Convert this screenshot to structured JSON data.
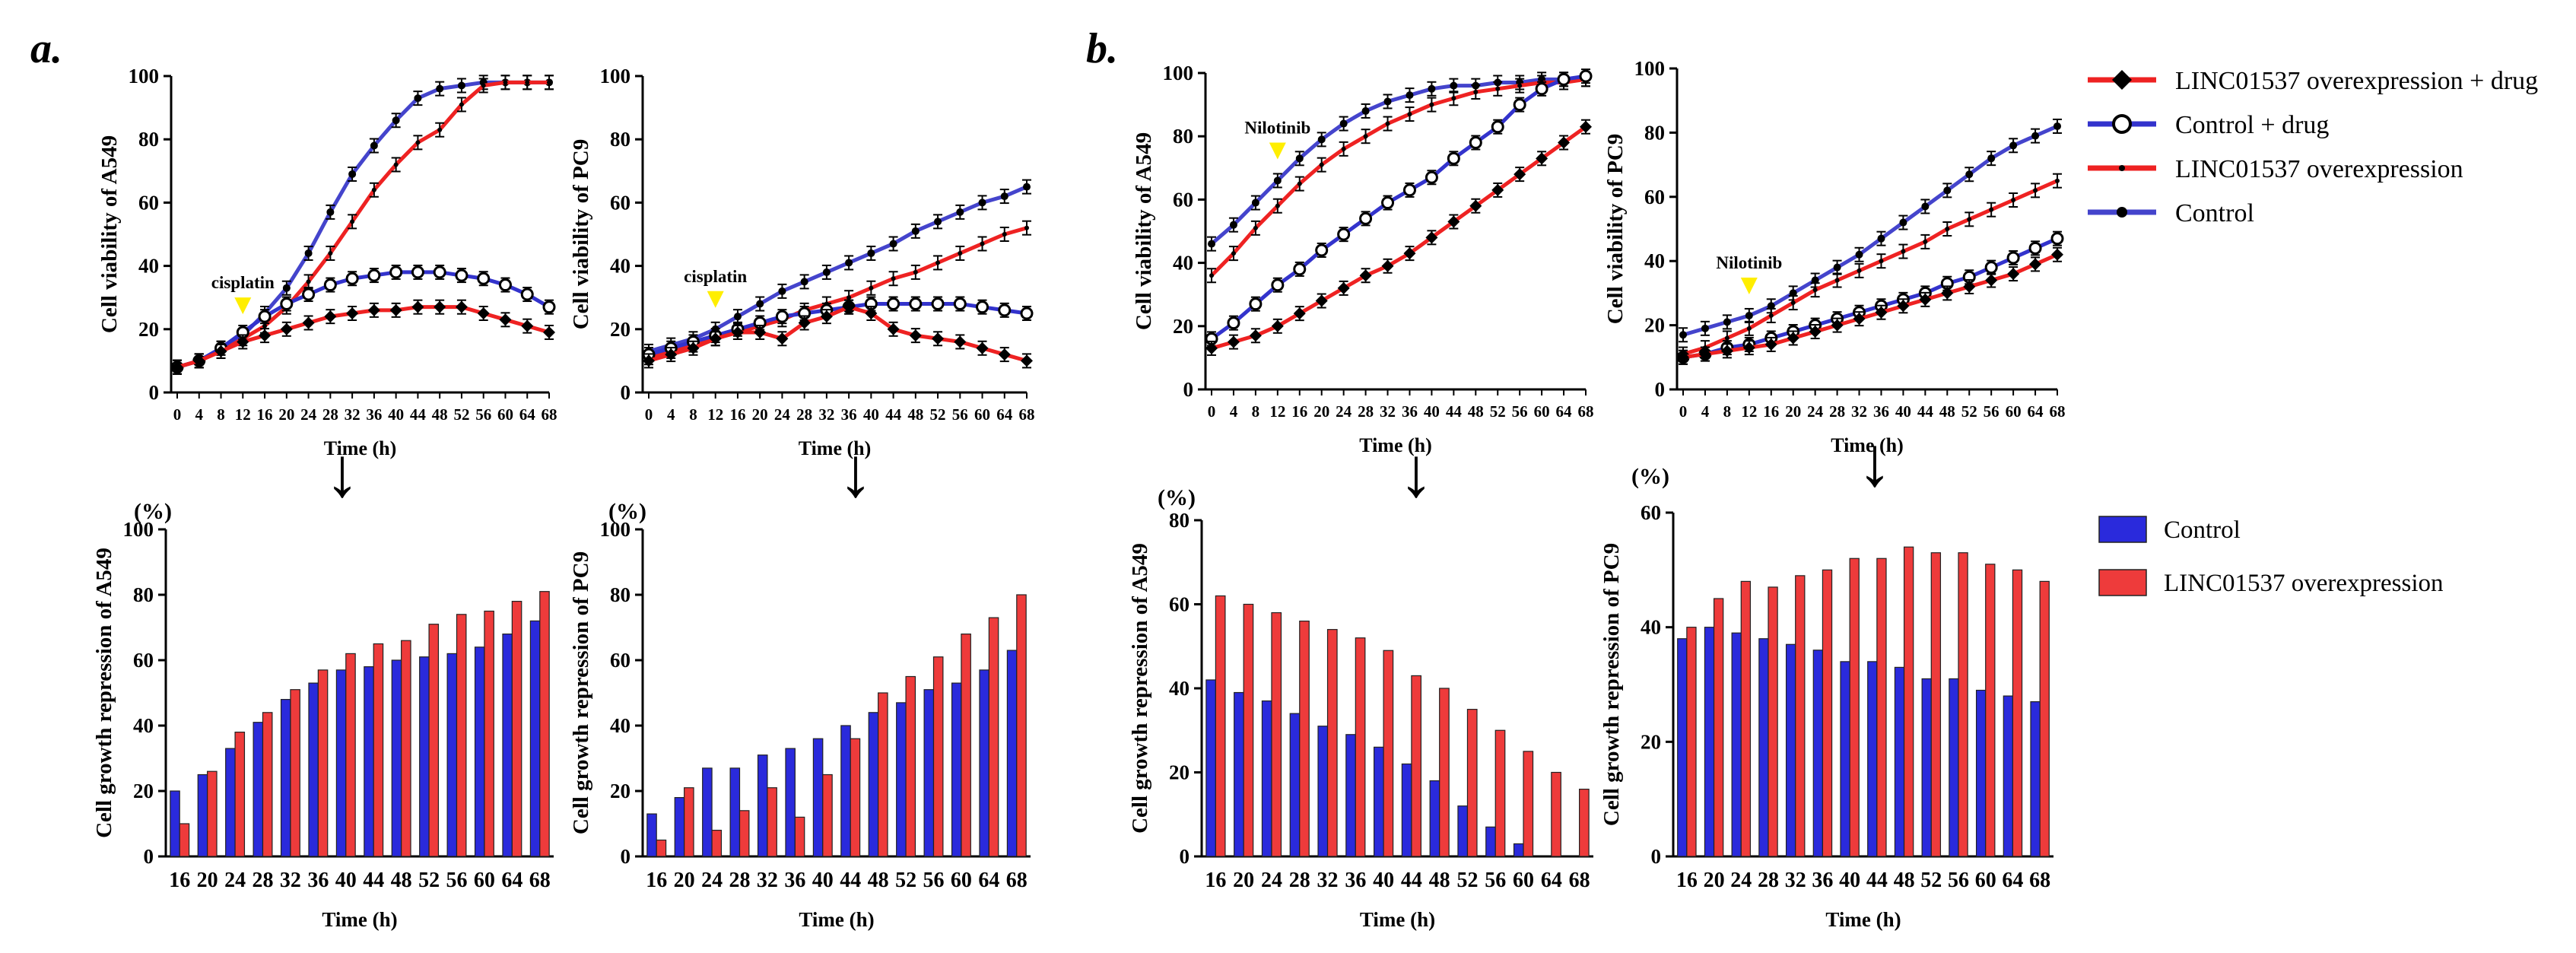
{
  "panel_labels": {
    "a": "a.",
    "b": "b."
  },
  "legend_lines": [
    {
      "label": "LINC01537 overexpression + drug",
      "color": "#ee2222",
      "marker": "diamond"
    },
    {
      "label": "Control + drug",
      "color": "#3333cc",
      "marker": "open-circle"
    },
    {
      "label": "LINC01537 overexpression",
      "color": "#ee2222",
      "marker": "small-dot"
    },
    {
      "label": "Control",
      "color": "#4444cc",
      "marker": "dot"
    }
  ],
  "legend_bars": [
    {
      "label": "Control",
      "color": "#2a2adc"
    },
    {
      "label": "LINC01537 overexpression",
      "color": "#ee3b3b"
    }
  ],
  "arrow_glyph": "↓",
  "percent_label": "(%)",
  "chart_data": [
    {
      "id": "a-top-left",
      "type": "line",
      "ylabel": "Cell viability of A549",
      "xlabel": "Time (h)",
      "ylim": [
        0,
        100
      ],
      "yticks": [
        0,
        20,
        40,
        60,
        80,
        100
      ],
      "x": [
        0,
        4,
        8,
        12,
        16,
        20,
        24,
        28,
        32,
        36,
        40,
        44,
        48,
        52,
        56,
        60,
        64,
        68
      ],
      "annotation": {
        "text": "cisplatin",
        "x": 12
      },
      "series": [
        {
          "name": "Control",
          "color": "#4444cc",
          "values": [
            8,
            10,
            14,
            18,
            25,
            33,
            44,
            57,
            69,
            78,
            86,
            93,
            96,
            97,
            98,
            98,
            98,
            98
          ]
        },
        {
          "name": "LINC01537 overexpression",
          "color": "#ee2222",
          "values": [
            8,
            10,
            13,
            17,
            21,
            27,
            35,
            44,
            54,
            64,
            72,
            79,
            83,
            91,
            97,
            98,
            98,
            98
          ]
        },
        {
          "name": "Control + drug",
          "color": "#3333cc",
          "values": [
            8,
            10,
            14,
            19,
            24,
            28,
            31,
            34,
            36,
            37,
            38,
            38,
            38,
            37,
            36,
            34,
            31,
            27
          ]
        },
        {
          "name": "LINC01537 overexpression + drug",
          "color": "#ee2222",
          "values": [
            8,
            10,
            13,
            16,
            18,
            20,
            22,
            24,
            25,
            26,
            26,
            27,
            27,
            27,
            25,
            23,
            21,
            19
          ]
        }
      ]
    },
    {
      "id": "a-top-right",
      "type": "line",
      "ylabel": "Cell viability of PC9",
      "xlabel": "Time (h)",
      "ylim": [
        0,
        100
      ],
      "yticks": [
        0,
        20,
        40,
        60,
        80,
        100
      ],
      "x": [
        0,
        4,
        8,
        12,
        16,
        20,
        24,
        28,
        32,
        36,
        40,
        44,
        48,
        52,
        56,
        60,
        64,
        68
      ],
      "annotation": {
        "text": "cisplatin",
        "x": 12
      },
      "series": [
        {
          "name": "Control",
          "color": "#4444cc",
          "values": [
            13,
            15,
            17,
            20,
            24,
            28,
            32,
            35,
            38,
            41,
            44,
            47,
            51,
            54,
            57,
            60,
            62,
            65
          ]
        },
        {
          "name": "LINC01537 overexpression",
          "color": "#ee2222",
          "values": [
            11,
            13,
            15,
            17,
            19,
            21,
            23,
            26,
            28,
            30,
            33,
            36,
            38,
            41,
            44,
            47,
            50,
            52
          ]
        },
        {
          "name": "Control + drug",
          "color": "#3333cc",
          "values": [
            12,
            14,
            16,
            18,
            20,
            22,
            24,
            25,
            26,
            27,
            28,
            28,
            28,
            28,
            28,
            27,
            26,
            25
          ]
        },
        {
          "name": "LINC01537 overexpression + drug",
          "color": "#ee2222",
          "values": [
            10,
            12,
            14,
            17,
            19,
            19,
            17,
            22,
            24,
            27,
            25,
            20,
            18,
            17,
            16,
            14,
            12,
            10
          ]
        }
      ]
    },
    {
      "id": "b-top-left",
      "type": "line",
      "ylabel": "Cell viability of A549",
      "xlabel": "Time (h)",
      "ylim": [
        0,
        100
      ],
      "yticks": [
        0,
        20,
        40,
        60,
        80,
        100
      ],
      "x": [
        0,
        4,
        8,
        12,
        16,
        20,
        24,
        28,
        32,
        36,
        40,
        44,
        48,
        52,
        56,
        60,
        64,
        68
      ],
      "annotation": {
        "text": "Nilotinib",
        "x": 12
      },
      "series": [
        {
          "name": "Control",
          "color": "#4444cc",
          "values": [
            46,
            52,
            59,
            66,
            73,
            79,
            84,
            88,
            91,
            93,
            95,
            96,
            96,
            97,
            97,
            98,
            98,
            98
          ]
        },
        {
          "name": "LINC01537 overexpression",
          "color": "#ee2222",
          "values": [
            36,
            43,
            51,
            58,
            65,
            71,
            76,
            80,
            84,
            87,
            90,
            92,
            94,
            95,
            96,
            97,
            97,
            98
          ]
        },
        {
          "name": "Control + drug",
          "color": "#3333cc",
          "values": [
            16,
            21,
            27,
            33,
            38,
            44,
            49,
            54,
            59,
            63,
            67,
            73,
            78,
            83,
            90,
            95,
            98,
            99
          ]
        },
        {
          "name": "LINC01537 overexpression + drug",
          "color": "#ee2222",
          "values": [
            13,
            15,
            17,
            20,
            24,
            28,
            32,
            36,
            39,
            43,
            48,
            53,
            58,
            63,
            68,
            73,
            78,
            83
          ]
        }
      ]
    },
    {
      "id": "b-top-right",
      "type": "line",
      "ylabel": "Cell viability of PC9",
      "xlabel": "Time (h)",
      "ylim": [
        0,
        100
      ],
      "yticks": [
        0,
        20,
        40,
        60,
        80,
        100
      ],
      "x": [
        0,
        4,
        8,
        12,
        16,
        20,
        24,
        28,
        32,
        36,
        40,
        44,
        48,
        52,
        56,
        60,
        64,
        68
      ],
      "annotation": {
        "text": "Nilotinib",
        "x": 12
      },
      "series": [
        {
          "name": "Control",
          "color": "#4444cc",
          "values": [
            17,
            19,
            21,
            23,
            26,
            30,
            34,
            38,
            42,
            47,
            52,
            57,
            62,
            67,
            72,
            76,
            79,
            82
          ]
        },
        {
          "name": "LINC01537 overexpression",
          "color": "#ee2222",
          "values": [
            11,
            13,
            16,
            19,
            23,
            27,
            31,
            34,
            37,
            40,
            43,
            46,
            50,
            53,
            56,
            59,
            62,
            65
          ]
        },
        {
          "name": "Control + drug",
          "color": "#3333cc",
          "values": [
            10,
            11,
            13,
            14,
            16,
            18,
            20,
            22,
            24,
            26,
            28,
            30,
            33,
            35,
            38,
            41,
            44,
            47
          ]
        },
        {
          "name": "LINC01537 overexpression + drug",
          "color": "#ee2222",
          "values": [
            10,
            11,
            12,
            13,
            14,
            16,
            18,
            20,
            22,
            24,
            26,
            28,
            30,
            32,
            34,
            36,
            39,
            42
          ]
        }
      ]
    },
    {
      "id": "a-bottom-left",
      "type": "bar",
      "ylabel": "Cell growth repression of A549",
      "xlabel": "Time (h)",
      "ylim": [
        0,
        100
      ],
      "yticks": [
        0,
        20,
        40,
        60,
        80,
        100
      ],
      "categories": [
        "16",
        "20",
        "24",
        "28",
        "32",
        "36",
        "40",
        "44",
        "48",
        "52",
        "56",
        "60",
        "64",
        "68"
      ],
      "series": [
        {
          "name": "Control",
          "color": "#2a2adc",
          "values": [
            20,
            25,
            33,
            41,
            48,
            53,
            57,
            58,
            60,
            61,
            62,
            64,
            68,
            72
          ]
        },
        {
          "name": "LINC01537 overexpression",
          "color": "#ee3b3b",
          "values": [
            10,
            26,
            38,
            44,
            51,
            57,
            62,
            65,
            66,
            71,
            74,
            75,
            78,
            81
          ]
        }
      ]
    },
    {
      "id": "a-bottom-right",
      "type": "bar",
      "ylabel": "Cell growth repression of PC9",
      "xlabel": "Time (h)",
      "ylim": [
        0,
        100
      ],
      "yticks": [
        0,
        20,
        40,
        60,
        80,
        100
      ],
      "categories": [
        "16",
        "20",
        "24",
        "28",
        "32",
        "36",
        "40",
        "44",
        "48",
        "52",
        "56",
        "60",
        "64",
        "68"
      ],
      "series": [
        {
          "name": "Control",
          "color": "#2a2adc",
          "values": [
            13,
            18,
            27,
            27,
            31,
            33,
            36,
            40,
            44,
            47,
            51,
            53,
            57,
            63
          ]
        },
        {
          "name": "LINC01537 overexpression",
          "color": "#ee3b3b",
          "values": [
            5,
            21,
            8,
            14,
            21,
            12,
            25,
            36,
            50,
            55,
            61,
            68,
            73,
            80
          ]
        }
      ]
    },
    {
      "id": "b-bottom-left",
      "type": "bar",
      "ylabel": "Cell growth repression of A549",
      "xlabel": "Time (h)",
      "ylim": [
        0,
        80
      ],
      "yticks": [
        0,
        20,
        40,
        60,
        80
      ],
      "categories": [
        "16",
        "20",
        "24",
        "28",
        "32",
        "36",
        "40",
        "44",
        "48",
        "52",
        "56",
        "60",
        "64",
        "68"
      ],
      "series": [
        {
          "name": "Control",
          "color": "#2a2adc",
          "values": [
            42,
            39,
            37,
            34,
            31,
            29,
            26,
            22,
            18,
            12,
            7,
            3,
            0,
            0
          ]
        },
        {
          "name": "LINC01537 overexpression",
          "color": "#ee3b3b",
          "values": [
            62,
            60,
            58,
            56,
            54,
            52,
            49,
            43,
            40,
            35,
            30,
            25,
            20,
            16
          ]
        }
      ]
    },
    {
      "id": "b-bottom-right",
      "type": "bar",
      "ylabel": "Cell growth repression of PC9",
      "xlabel": "Time (h)",
      "ylim": [
        0,
        60
      ],
      "yticks": [
        0,
        20,
        40,
        60
      ],
      "categories": [
        "16",
        "20",
        "24",
        "28",
        "32",
        "36",
        "40",
        "44",
        "48",
        "52",
        "56",
        "60",
        "64",
        "68"
      ],
      "series": [
        {
          "name": "Control",
          "color": "#2a2adc",
          "values": [
            38,
            40,
            39,
            38,
            37,
            36,
            34,
            34,
            33,
            31,
            31,
            29,
            28,
            27
          ]
        },
        {
          "name": "LINC01537 overexpression",
          "color": "#ee3b3b",
          "values": [
            40,
            45,
            48,
            47,
            49,
            50,
            52,
            52,
            54,
            53,
            53,
            51,
            50,
            48
          ]
        }
      ]
    }
  ]
}
